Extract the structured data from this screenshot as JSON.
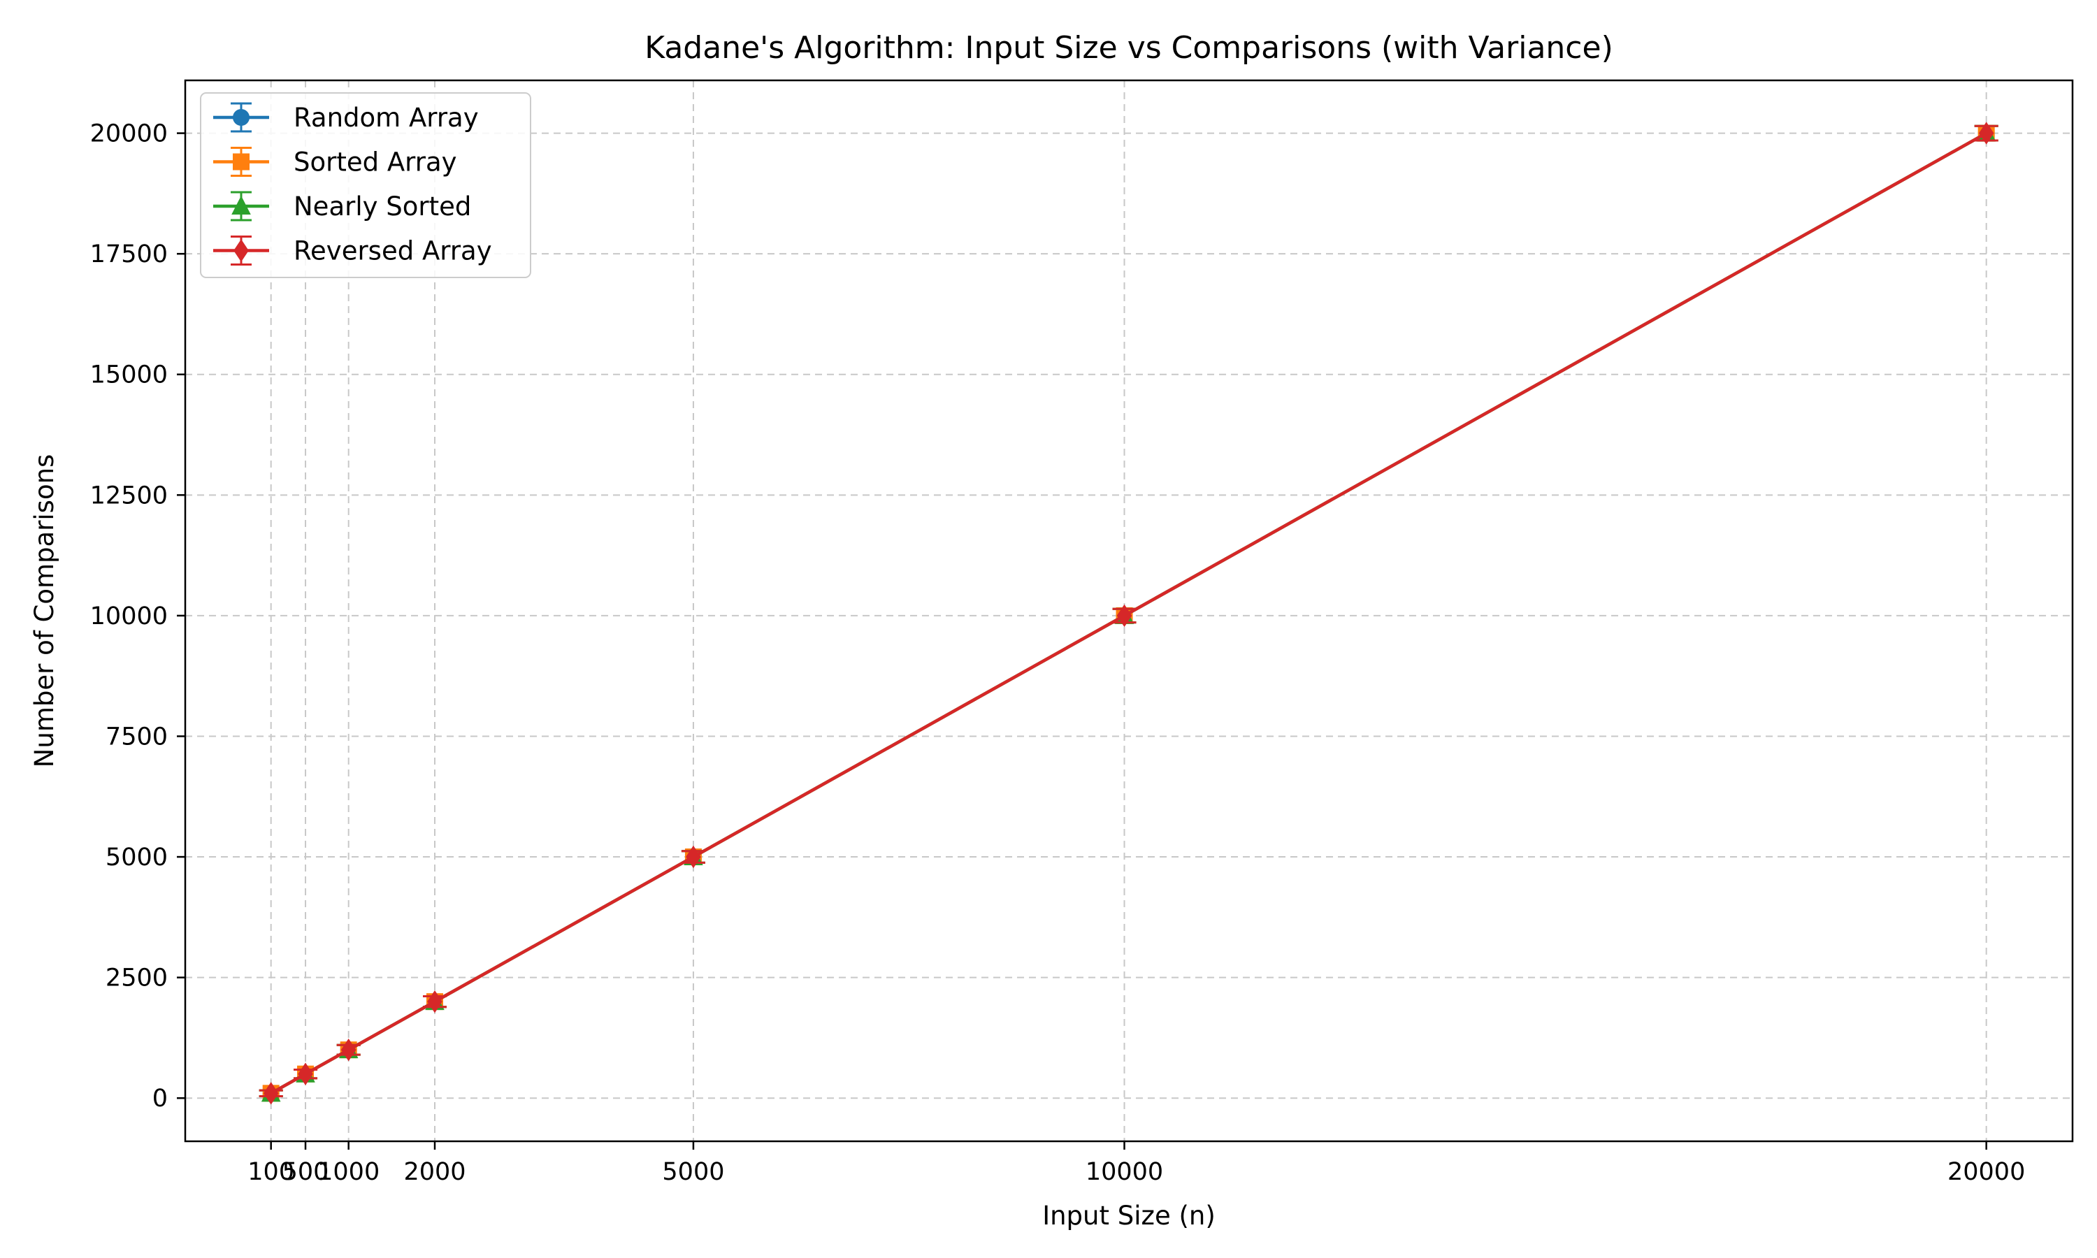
{
  "chart_data": {
    "type": "line",
    "title": "Kadane's Algorithm: Input Size vs Comparisons (with Variance)",
    "xlabel": "Input Size (n)",
    "ylabel": "Number of Comparisons",
    "x": [
      100,
      500,
      1000,
      2000,
      5000,
      10000,
      20000
    ],
    "x_ticks": [
      100,
      500,
      1000,
      2000,
      5000,
      10000,
      20000
    ],
    "x_tick_labels": [
      "100",
      "500",
      "1000",
      "2000",
      "5000",
      "10000",
      "20000"
    ],
    "y_ticks": [
      0,
      2500,
      5000,
      7500,
      10000,
      12500,
      15000,
      17500,
      20000
    ],
    "y_tick_labels": [
      "0",
      "2500",
      "5000",
      "7500",
      "10000",
      "12500",
      "15000",
      "17500",
      "20000"
    ],
    "xlim": [
      -895,
      21000
    ],
    "ylim": [
      -895,
      21095
    ],
    "grid": true,
    "legend_position": "upper-left",
    "series": [
      {
        "name": "Random Array",
        "color": "#1f77b4",
        "marker": "circle",
        "values": [
          100,
          500,
          1000,
          2000,
          5000,
          10000,
          20000
        ],
        "error": [
          60,
          90,
          100,
          110,
          120,
          140,
          150
        ]
      },
      {
        "name": "Sorted Array",
        "color": "#ff7f0e",
        "marker": "square",
        "values": [
          100,
          500,
          1000,
          2000,
          5000,
          10000,
          20000
        ],
        "error": [
          60,
          90,
          100,
          110,
          120,
          140,
          150
        ]
      },
      {
        "name": "Nearly Sorted",
        "color": "#2ca02c",
        "marker": "triangle",
        "values": [
          100,
          500,
          1000,
          2000,
          5000,
          10000,
          20000
        ],
        "error": [
          60,
          90,
          100,
          110,
          120,
          140,
          150
        ]
      },
      {
        "name": "Reversed Array",
        "color": "#d62728",
        "marker": "diamond",
        "values": [
          100,
          500,
          1000,
          2000,
          5000,
          10000,
          20000
        ],
        "error": [
          60,
          90,
          100,
          110,
          120,
          140,
          150
        ]
      }
    ]
  }
}
